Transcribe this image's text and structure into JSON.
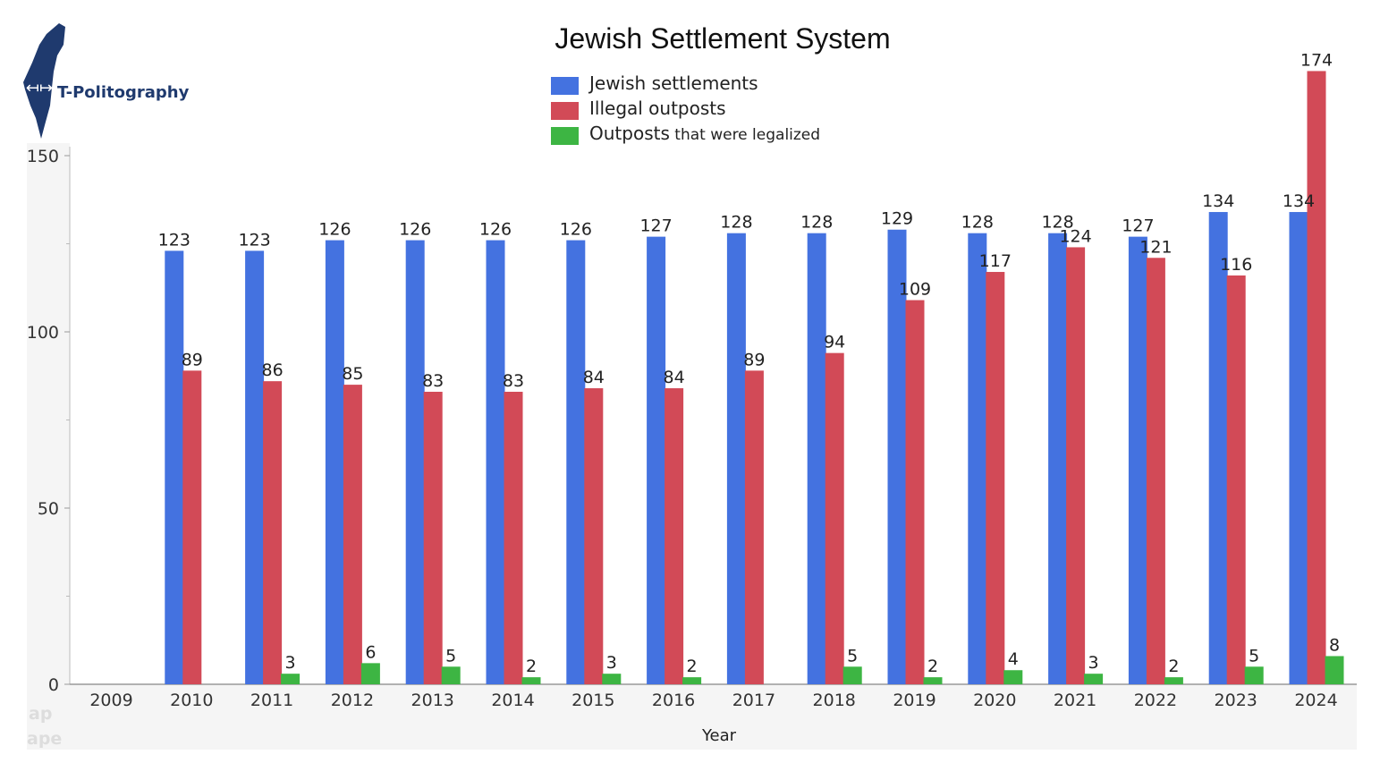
{
  "branding": {
    "name": "T-Politography",
    "map_color": "#1f3a6e",
    "ghost_lines": [
      "ap",
      "ape"
    ]
  },
  "chart_data": {
    "type": "bar",
    "title": "Jewish Settlement System",
    "xlabel": "Year",
    "ylabel": "",
    "ylim": [
      0,
      150
    ],
    "yticks": [
      0,
      50,
      100,
      150
    ],
    "grid": false,
    "legend_position": "top-center",
    "categories": [
      "2009",
      "2010",
      "2011",
      "2012",
      "2013",
      "2014",
      "2015",
      "2016",
      "2017",
      "2018",
      "2019",
      "2020",
      "2021",
      "2022",
      "2023",
      "2024"
    ],
    "series": [
      {
        "name": "Jewish settlements",
        "color": "#4472e0",
        "values": [
          null,
          123,
          123,
          126,
          126,
          126,
          126,
          127,
          128,
          128,
          129,
          128,
          128,
          127,
          134,
          134
        ]
      },
      {
        "name": "Illegal outposts",
        "color": "#d24a57",
        "values": [
          null,
          89,
          86,
          85,
          83,
          83,
          84,
          84,
          89,
          94,
          109,
          117,
          124,
          121,
          116,
          174
        ]
      },
      {
        "name": "Outposts that were legalized",
        "name_main": "Outposts",
        "name_rest": " that were legalized",
        "color": "#3db543",
        "values": [
          null,
          null,
          3,
          6,
          5,
          2,
          3,
          2,
          null,
          5,
          2,
          4,
          3,
          2,
          5,
          8
        ]
      }
    ]
  }
}
